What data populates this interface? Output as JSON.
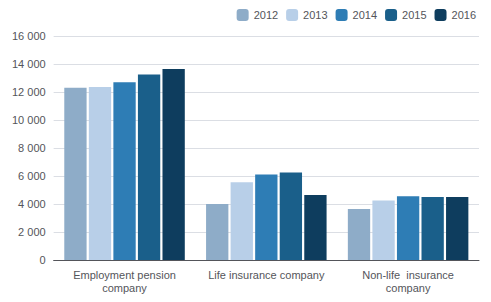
{
  "chart_data": {
    "type": "bar",
    "categories": [
      "Employment pension\ncompany",
      "Life insurance company",
      "Non-life  insurance\ncompany"
    ],
    "series": [
      {
        "name": "2012",
        "color": "#8eacc8",
        "values": [
          12300,
          4000,
          3650
        ]
      },
      {
        "name": "2013",
        "color": "#b8cfe8",
        "values": [
          12350,
          5550,
          4250
        ]
      },
      {
        "name": "2014",
        "color": "#2e7db5",
        "values": [
          12700,
          6100,
          4550
        ]
      },
      {
        "name": "2015",
        "color": "#1a5f8a",
        "values": [
          13250,
          6250,
          4500
        ]
      },
      {
        "name": "2016",
        "color": "#0e3d5e",
        "values": [
          13650,
          4650,
          4500
        ]
      }
    ],
    "ylim": [
      0,
      16000
    ],
    "yticks": [
      0,
      {
        "value": 2000,
        "label": "2 000"
      },
      {
        "value": 4000,
        "label": "4 000"
      },
      {
        "value": 6000,
        "label": "6 000"
      },
      {
        "value": 8000,
        "label": "8 000"
      },
      {
        "value": 10000,
        "label": "10 000"
      },
      {
        "value": 12000,
        "label": "12 000"
      },
      {
        "value": 14000,
        "label": "14 000"
      },
      {
        "value": 16000,
        "label": "16 000"
      }
    ],
    "grid": true,
    "legend": "upper right"
  }
}
